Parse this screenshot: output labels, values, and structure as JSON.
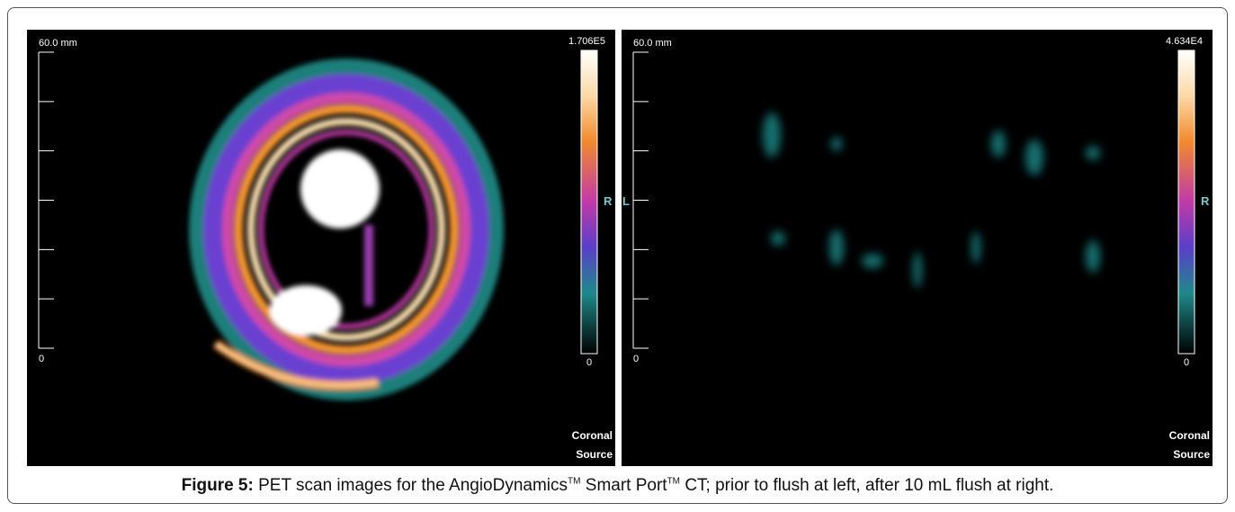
{
  "panels": [
    {
      "scale_label": "60.0 mm",
      "scale_zero": "0",
      "colorbar_max": "1.706E5",
      "colorbar_min": "0",
      "orientation_right": "R",
      "view": "Coronal",
      "source": "Source"
    },
    {
      "orientation_left": "L",
      "scale_label": "60.0 mm",
      "scale_zero": "0",
      "colorbar_max": "4.634E4",
      "colorbar_min": "0",
      "orientation_right": "R",
      "view": "Coronal",
      "source": "Source"
    }
  ],
  "caption": {
    "label": "Figure 5:",
    "text_1": "PET scan images for the AngioDynamics",
    "tm_1": "TM",
    "text_2": "Smart Port",
    "tm_2": "TM",
    "text_3": "CT; prior to flush at left, after 10 mL flush at right."
  }
}
